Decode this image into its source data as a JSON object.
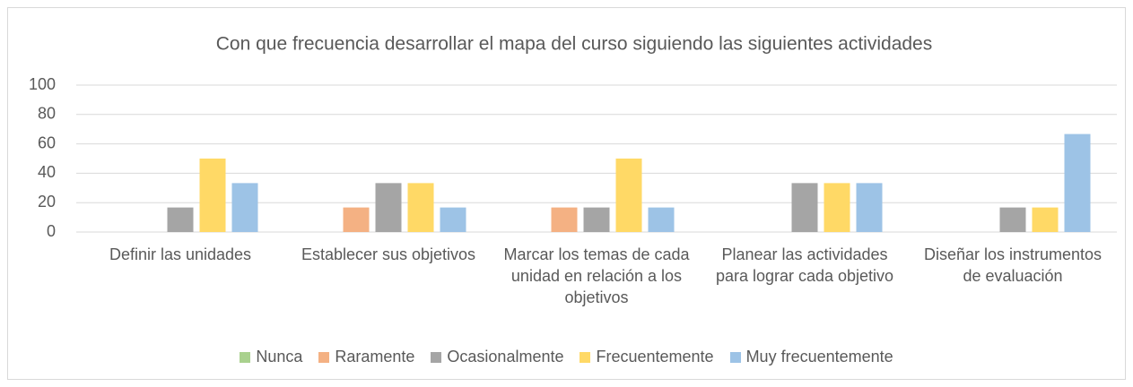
{
  "chart_data": {
    "type": "bar",
    "title": "Con que frecuencia desarrollar el mapa del curso siguiendo las siguientes actividades",
    "categories": [
      "Definir las unidades",
      "Establecer sus objetivos",
      "Marcar los temas de cada unidad en relación a los objetivos",
      "Planear las actividades para lograr cada objetivo",
      "Diseñar los instrumentos de evaluación"
    ],
    "series": [
      {
        "name": "Nunca",
        "color": "#a9d18e",
        "values": [
          0,
          0,
          0,
          0,
          0
        ]
      },
      {
        "name": "Raramente",
        "color": "#f4b183",
        "values": [
          0,
          16.7,
          16.7,
          0,
          0
        ]
      },
      {
        "name": "Ocasionalmente",
        "color": "#a5a5a5",
        "values": [
          16.7,
          33.3,
          16.7,
          33.3,
          16.7
        ]
      },
      {
        "name": "Frecuentemente",
        "color": "#ffd966",
        "values": [
          50,
          33.3,
          50,
          33.3,
          16.7
        ]
      },
      {
        "name": "Muy frecuentemente",
        "color": "#9dc3e6",
        "values": [
          33.3,
          16.7,
          16.7,
          33.3,
          66.7
        ]
      }
    ],
    "ylim": [
      0,
      100
    ],
    "yticks": [
      0,
      20,
      40,
      60,
      80,
      100
    ],
    "grid": true,
    "legend": "bottom"
  }
}
